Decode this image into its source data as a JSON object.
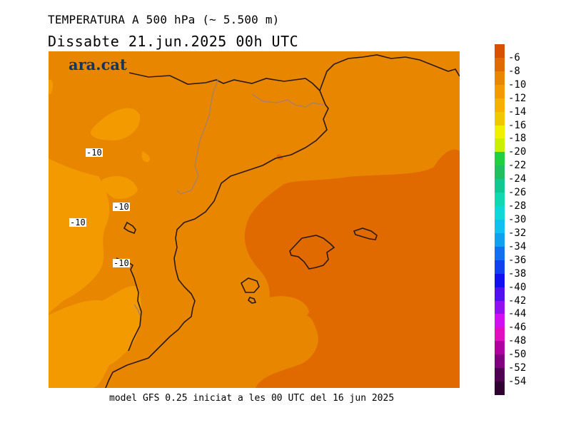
{
  "header": {
    "title": "TEMPERATURA A 500 hPa (~ 5.500 m)",
    "date_line": "Dissabte   21.jun.2025 00h UTC"
  },
  "brand": "ara.cat",
  "footer": "model GFS 0.25 iniciat a les 00 UTC del 16 jun 2025",
  "colors": {
    "field_minus12": "#f29a00",
    "field_minus10": "#e88600",
    "field_minus8": "#e06a00",
    "coastline": "#2a1a10",
    "border": "#a08070"
  },
  "isolines": {
    "labels": [
      "-10",
      "-10",
      "-10",
      "-10"
    ]
  },
  "colorbar": {
    "labels": [
      "-6",
      "-8",
      "-10",
      "-12",
      "-14",
      "-16",
      "-18",
      "-20",
      "-22",
      "-24",
      "-26",
      "-28",
      "-30",
      "-32",
      "-34",
      "-36",
      "-38",
      "-40",
      "-42",
      "-44",
      "-46",
      "-48",
      "-50",
      "-52",
      "-54"
    ],
    "colors": [
      "#d95000",
      "#e06a00",
      "#e88600",
      "#f29a00",
      "#f5b000",
      "#f0c800",
      "#f0f000",
      "#c8f000",
      "#20d040",
      "#20c060",
      "#10c890",
      "#10d8b0",
      "#10d8d8",
      "#10c0f0",
      "#10a0f0",
      "#1070f0",
      "#1040f0",
      "#1010f0",
      "#5010f0",
      "#9010f0",
      "#d010f0",
      "#e010c0",
      "#b000a0",
      "#800080",
      "#500050",
      "#300030"
    ]
  }
}
